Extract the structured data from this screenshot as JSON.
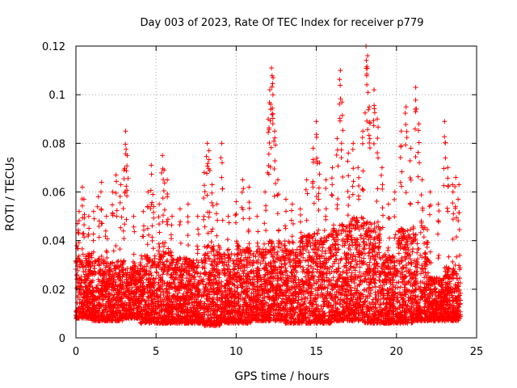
{
  "chart_data": {
    "type": "scatter",
    "title": "Day 003 of 2023, Rate Of TEC Index for receiver p779",
    "xlabel": "GPS time / hours",
    "ylabel": "ROTI / TECUs",
    "xlim": [
      0,
      25
    ],
    "ylim": [
      0,
      0.12
    ],
    "x_ticks": [
      "0",
      "5",
      "10",
      "15",
      "20",
      "25"
    ],
    "y_ticks": [
      "0",
      "0.02",
      "0.04",
      "0.06",
      "0.08",
      "0.1",
      "0.12"
    ],
    "grid": true,
    "marker": "+",
    "color": "#ff0000",
    "series": [
      {
        "points": [
          [
            0.1,
            0.047
          ],
          [
            0.2,
            0.052
          ],
          [
            0.4,
            0.062
          ],
          [
            0.5,
            0.057
          ],
          [
            0.8,
            0.05
          ],
          [
            1.1,
            0.052
          ],
          [
            1.4,
            0.058
          ],
          [
            1.6,
            0.064
          ],
          [
            1.9,
            0.05
          ],
          [
            2.3,
            0.06
          ],
          [
            2.5,
            0.067
          ],
          [
            2.8,
            0.063
          ],
          [
            3.0,
            0.069
          ],
          [
            3.1,
            0.085
          ],
          [
            3.2,
            0.075
          ],
          [
            3.6,
            0.05
          ],
          [
            4.2,
            0.052
          ],
          [
            4.5,
            0.06
          ],
          [
            4.7,
            0.071
          ],
          [
            4.8,
            0.059
          ],
          [
            5.2,
            0.055
          ],
          [
            5.4,
            0.075
          ],
          [
            5.5,
            0.069
          ],
          [
            5.7,
            0.065
          ],
          [
            6.0,
            0.05
          ],
          [
            6.5,
            0.053
          ],
          [
            7.0,
            0.055
          ],
          [
            7.6,
            0.05
          ],
          [
            8.0,
            0.068
          ],
          [
            8.2,
            0.08
          ],
          [
            8.3,
            0.077
          ],
          [
            8.5,
            0.063
          ],
          [
            8.8,
            0.055
          ],
          [
            9.1,
            0.08
          ],
          [
            9.5,
            0.05
          ],
          [
            10.0,
            0.056
          ],
          [
            10.4,
            0.065
          ],
          [
            10.8,
            0.062
          ],
          [
            11.3,
            0.05
          ],
          [
            11.8,
            0.06
          ],
          [
            12.0,
            0.09
          ],
          [
            12.1,
            0.102
          ],
          [
            12.2,
            0.111
          ],
          [
            12.3,
            0.107
          ],
          [
            12.4,
            0.085
          ],
          [
            12.6,
            0.065
          ],
          [
            13.1,
            0.057
          ],
          [
            13.5,
            0.055
          ],
          [
            14.0,
            0.053
          ],
          [
            14.4,
            0.065
          ],
          [
            14.8,
            0.078
          ],
          [
            15.0,
            0.089
          ],
          [
            15.2,
            0.072
          ],
          [
            15.6,
            0.065
          ],
          [
            16.0,
            0.07
          ],
          [
            16.3,
            0.082
          ],
          [
            16.5,
            0.11
          ],
          [
            16.6,
            0.097
          ],
          [
            17.0,
            0.076
          ],
          [
            17.3,
            0.08
          ],
          [
            17.6,
            0.07
          ],
          [
            17.9,
            0.085
          ],
          [
            18.1,
            0.12
          ],
          [
            18.2,
            0.116
          ],
          [
            18.3,
            0.095
          ],
          [
            18.6,
            0.102
          ],
          [
            18.8,
            0.09
          ],
          [
            19.1,
            0.07
          ],
          [
            19.5,
            0.055
          ],
          [
            19.9,
            0.06
          ],
          [
            20.3,
            0.085
          ],
          [
            20.6,
            0.095
          ],
          [
            20.9,
            0.078
          ],
          [
            21.2,
            0.103
          ],
          [
            21.4,
            0.088
          ],
          [
            21.6,
            0.065
          ],
          [
            22.1,
            0.06
          ],
          [
            22.6,
            0.055
          ],
          [
            23.0,
            0.089
          ],
          [
            23.2,
            0.07
          ],
          [
            23.5,
            0.063
          ],
          [
            23.7,
            0.066
          ],
          [
            23.9,
            0.063
          ]
        ]
      }
    ],
    "bulk_density": [
      [
        0.5,
        0.008,
        0.035
      ],
      [
        1.5,
        0.007,
        0.033
      ],
      [
        2.5,
        0.007,
        0.032
      ],
      [
        3.5,
        0.008,
        0.03
      ],
      [
        4.5,
        0.006,
        0.034
      ],
      [
        5.5,
        0.006,
        0.036
      ],
      [
        6.5,
        0.006,
        0.033
      ],
      [
        7.5,
        0.006,
        0.032
      ],
      [
        8.5,
        0.005,
        0.038
      ],
      [
        9.5,
        0.006,
        0.035
      ],
      [
        10.5,
        0.006,
        0.038
      ],
      [
        11.5,
        0.007,
        0.037
      ],
      [
        12.5,
        0.007,
        0.04
      ],
      [
        13.5,
        0.006,
        0.04
      ],
      [
        14.5,
        0.006,
        0.043
      ],
      [
        15.5,
        0.006,
        0.045
      ],
      [
        16.5,
        0.007,
        0.047
      ],
      [
        17.5,
        0.007,
        0.05
      ],
      [
        18.5,
        0.006,
        0.048
      ],
      [
        19.5,
        0.006,
        0.035
      ],
      [
        20.5,
        0.006,
        0.045
      ],
      [
        21.5,
        0.007,
        0.046
      ],
      [
        22.5,
        0.007,
        0.025
      ],
      [
        23.5,
        0.007,
        0.03
      ]
    ]
  }
}
